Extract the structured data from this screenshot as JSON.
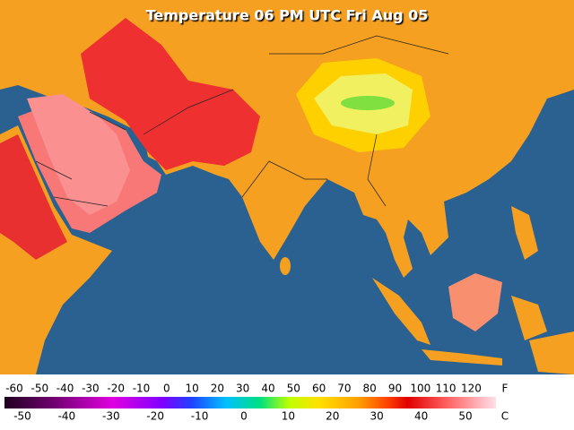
{
  "header": {
    "title": "Temperature 06 PM UTC Fri Aug 05"
  },
  "legend": {
    "fahrenheit_unit": "F",
    "celsius_unit": "C",
    "fahrenheit_labels": [
      -60,
      -50,
      -40,
      -30,
      -20,
      -10,
      0,
      10,
      20,
      30,
      40,
      50,
      60,
      70,
      80,
      90,
      100,
      110,
      120
    ],
    "celsius_labels": [
      -50,
      -40,
      -30,
      -20,
      -10,
      0,
      10,
      20,
      30,
      40,
      50
    ]
  }
}
